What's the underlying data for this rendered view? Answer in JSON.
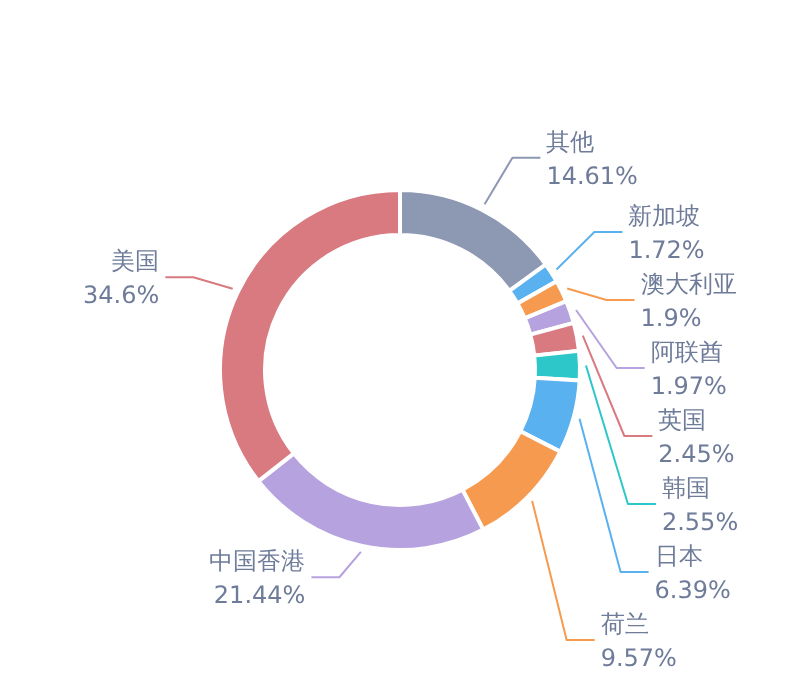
{
  "chart_data": {
    "type": "donut",
    "categories": [
      "其他",
      "新加坡",
      "澳大利亚",
      "阿联酋",
      "英国",
      "韩国",
      "日本",
      "荷兰",
      "中国香港",
      "美国"
    ],
    "values": [
      14.61,
      1.72,
      1.9,
      1.97,
      2.45,
      2.55,
      6.39,
      9.57,
      21.44,
      34.6
    ],
    "colors": [
      "#8d98b3",
      "#5ab1ef",
      "#f59a4f",
      "#b6a2de",
      "#d87a80",
      "#2ec7c9",
      "#5ab1ef",
      "#f59a4f",
      "#b6a2de",
      "#d87a80"
    ],
    "value_labels": [
      "14.61%",
      "1.72%",
      "1.9%",
      "1.97%",
      "2.45%",
      "2.55%",
      "6.39%",
      "9.57%",
      "21.44%",
      "34.6%"
    ]
  }
}
